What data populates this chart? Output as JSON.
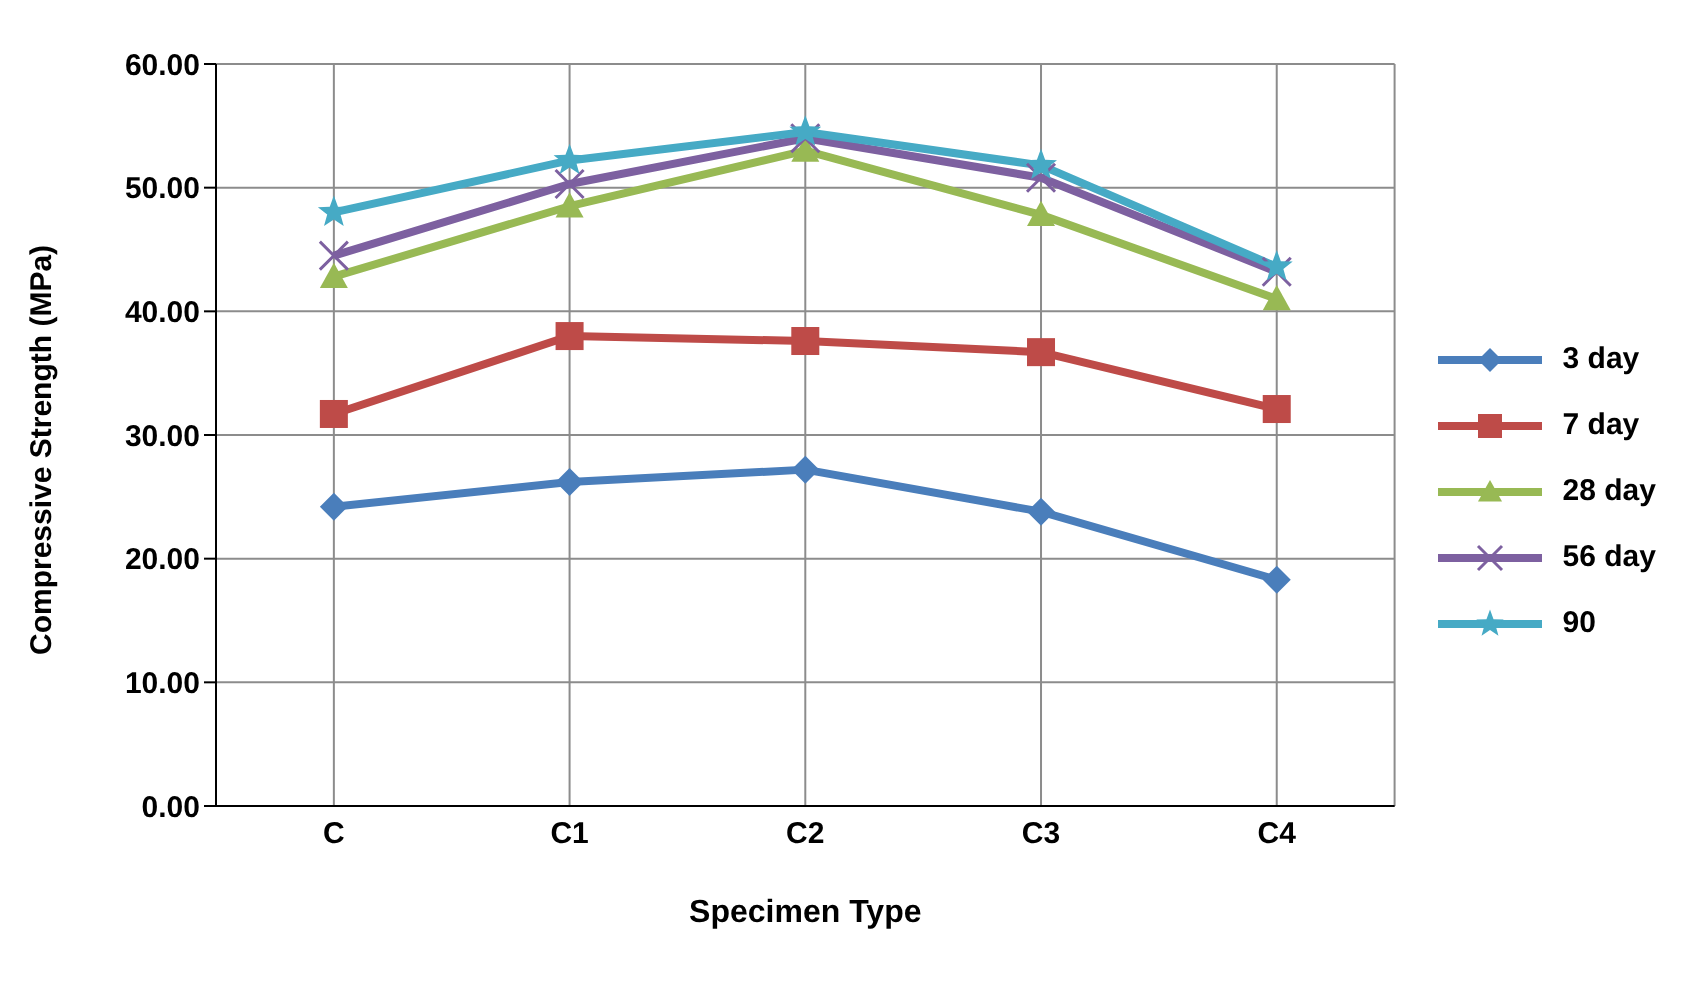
{
  "chart_data": {
    "type": "line",
    "xlabel": "Specimen Type",
    "ylabel": "Compressive Strength (MPa)",
    "categories": [
      "C",
      "C1",
      "C2",
      "C3",
      "C4"
    ],
    "series": [
      {
        "name": "3 day",
        "color": "#4a7ebb",
        "marker": "diamond",
        "values": [
          24.2,
          26.2,
          27.2,
          23.8,
          18.3
        ]
      },
      {
        "name": "7 day",
        "color": "#be4b48",
        "marker": "square",
        "values": [
          31.7,
          38.0,
          37.6,
          36.7,
          32.1
        ]
      },
      {
        "name": "28 day",
        "color": "#98b954",
        "marker": "triangle",
        "values": [
          42.8,
          48.5,
          53.0,
          47.8,
          41.0
        ]
      },
      {
        "name": "56 day",
        "color": "#7d60a0",
        "marker": "cross",
        "values": [
          44.5,
          50.3,
          54.0,
          50.8,
          43.2
        ]
      },
      {
        "name": "90",
        "color": "#46aac5",
        "marker": "star",
        "values": [
          48.0,
          52.2,
          54.5,
          51.8,
          43.6
        ]
      }
    ],
    "ylim": [
      0,
      60
    ],
    "yticks": [
      {
        "value": 0,
        "label": "0.00"
      },
      {
        "value": 10,
        "label": "10.00"
      },
      {
        "value": 20,
        "label": "20.00"
      },
      {
        "value": 30,
        "label": "30.00"
      },
      {
        "value": 40,
        "label": "40.00"
      },
      {
        "value": 50,
        "label": "50.00"
      },
      {
        "value": 60,
        "label": "60.00"
      }
    ],
    "grid": true,
    "legend": "right"
  }
}
